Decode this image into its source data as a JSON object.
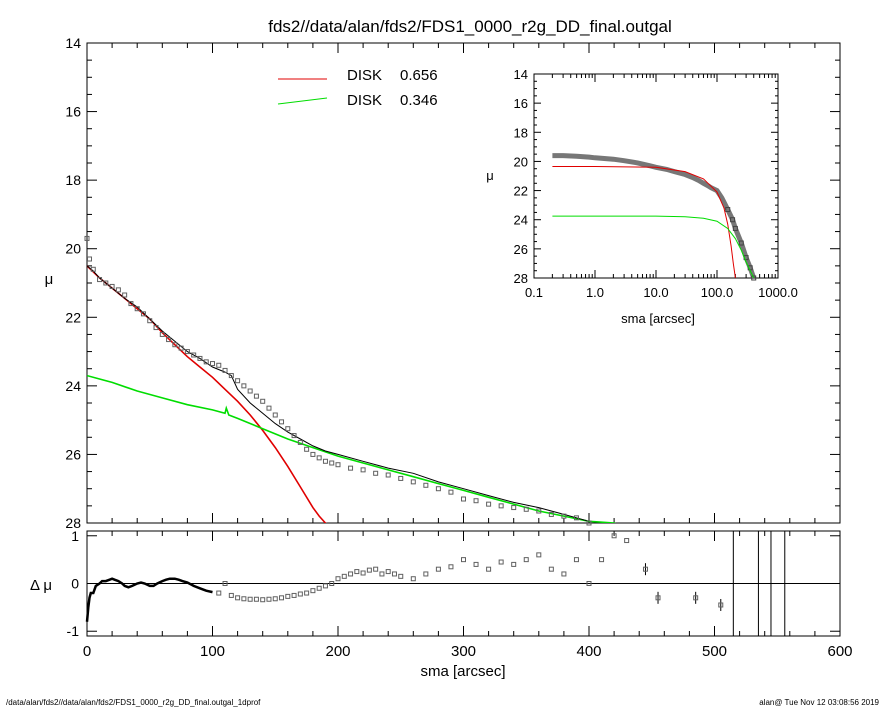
{
  "title": "fds2//data/alan/fds2/FDS1_0000_r2g_DD_final.outgal",
  "footer": {
    "left": "/data/alan/fds2//data/alan/fds2/FDS1_0000_r2g_DD_final.outgal_1dprof",
    "right": "alan@  Tue Nov 12 03:08:56 2019"
  },
  "colors": {
    "disk1": "#e00000",
    "disk2": "#00dd00",
    "data": "#606060",
    "model": "#000000"
  },
  "chart_data": [
    {
      "id": "main",
      "type": "line",
      "ylabel": "μ",
      "xlim": [
        0,
        600
      ],
      "ylim": [
        14,
        28
      ],
      "y_inverted": true,
      "yticks": [
        14,
        16,
        18,
        20,
        22,
        24,
        26,
        28
      ],
      "legend": [
        {
          "name": "DISK",
          "value": "0.656",
          "color": "#e00000"
        },
        {
          "name": "DISK",
          "value": "0.346",
          "color": "#00dd00"
        }
      ],
      "series": [
        {
          "name": "data",
          "x": [
            0,
            2,
            5,
            10,
            15,
            20,
            25,
            30,
            35,
            40,
            45,
            50,
            55,
            60,
            65,
            70,
            75,
            80,
            85,
            90,
            95,
            100,
            105,
            110,
            115,
            120,
            125,
            130,
            135,
            140,
            145,
            150,
            155,
            160,
            165,
            170,
            175,
            180,
            185,
            190,
            195,
            200,
            210,
            220,
            230,
            240,
            250,
            260,
            270,
            280,
            290,
            300,
            310,
            320,
            330,
            340,
            350,
            360,
            370,
            380,
            390,
            400
          ],
          "y": [
            19.7,
            20.3,
            20.6,
            20.9,
            21.0,
            21.1,
            21.2,
            21.35,
            21.6,
            21.75,
            21.9,
            22.1,
            22.3,
            22.5,
            22.65,
            22.8,
            22.9,
            23.0,
            23.1,
            23.2,
            23.3,
            23.35,
            23.4,
            23.55,
            23.7,
            23.85,
            24.0,
            24.15,
            24.3,
            24.45,
            24.65,
            24.85,
            25.05,
            25.25,
            25.45,
            25.65,
            25.85,
            26.0,
            26.1,
            26.2,
            26.25,
            26.3,
            26.4,
            26.45,
            26.55,
            26.6,
            26.7,
            26.8,
            26.9,
            27.0,
            27.1,
            27.3,
            27.35,
            27.45,
            27.5,
            27.55,
            27.6,
            27.65,
            27.75,
            27.8,
            27.85,
            28.0
          ]
        },
        {
          "name": "model",
          "x": [
            0,
            5,
            10,
            20,
            30,
            40,
            50,
            60,
            70,
            80,
            90,
            100,
            110,
            115,
            120,
            130,
            140,
            150,
            160,
            170,
            180,
            190,
            200,
            220,
            240,
            260,
            280,
            300,
            320,
            340,
            360,
            380,
            400
          ],
          "y": [
            20.5,
            20.65,
            20.85,
            21.15,
            21.45,
            21.7,
            22.05,
            22.4,
            22.7,
            23.0,
            23.2,
            23.45,
            23.6,
            23.7,
            24.1,
            24.5,
            24.8,
            25.1,
            25.35,
            25.55,
            25.75,
            25.9,
            26.0,
            26.2,
            26.4,
            26.55,
            26.8,
            27.0,
            27.2,
            27.4,
            27.55,
            27.75,
            27.95
          ]
        },
        {
          "name": "DISK 0.656",
          "x": [
            0,
            10,
            20,
            30,
            40,
            50,
            60,
            70,
            80,
            90,
            100,
            110,
            120,
            130,
            140,
            150,
            160,
            170,
            180,
            185,
            190,
            193
          ],
          "y": [
            20.5,
            20.85,
            21.15,
            21.45,
            21.75,
            22.05,
            22.45,
            22.8,
            23.15,
            23.45,
            23.75,
            24.1,
            24.45,
            24.85,
            25.3,
            25.8,
            26.35,
            26.95,
            27.55,
            27.8,
            28.0,
            28.1
          ]
        },
        {
          "name": "DISK 0.346",
          "x": [
            0,
            20,
            40,
            60,
            80,
            100,
            110,
            111,
            113,
            120,
            140,
            160,
            180,
            200,
            220,
            240,
            260,
            280,
            300,
            320,
            340,
            360,
            380,
            400,
            420,
            425
          ],
          "y": [
            23.7,
            23.9,
            24.15,
            24.35,
            24.55,
            24.7,
            24.8,
            24.65,
            24.85,
            24.95,
            25.25,
            25.55,
            25.8,
            26.05,
            26.25,
            26.45,
            26.65,
            26.85,
            27.05,
            27.25,
            27.45,
            27.65,
            27.8,
            27.95,
            28.0,
            28.1
          ]
        }
      ]
    },
    {
      "id": "inset",
      "type": "line",
      "xlabel": "sma [arcsec]",
      "ylabel": "μ",
      "xscale": "log",
      "xlim": [
        0.1,
        1000
      ],
      "xtick_labels": [
        "0.1",
        "1.0",
        "10.0",
        "100.0",
        "1000.0"
      ],
      "ylim": [
        14,
        28
      ],
      "y_inverted": true,
      "yticks": [
        14,
        16,
        18,
        20,
        22,
        24,
        26,
        28
      ],
      "series": [
        {
          "name": "data",
          "x": [
            0.2,
            0.3,
            0.5,
            0.8,
            1.0,
            2,
            3,
            5,
            8,
            10,
            15,
            20,
            30,
            40,
            50,
            60,
            70,
            80,
            100,
            120,
            150,
            180,
            200,
            250,
            300,
            350,
            400
          ],
          "y": [
            19.6,
            19.6,
            19.65,
            19.7,
            19.75,
            19.85,
            19.95,
            20.1,
            20.3,
            20.4,
            20.55,
            20.7,
            20.9,
            21.1,
            21.3,
            21.5,
            21.65,
            21.8,
            22.0,
            22.5,
            23.3,
            24.0,
            24.6,
            25.6,
            26.6,
            27.3,
            28.0
          ]
        },
        {
          "name": "DISK 0.656",
          "x": [
            0.2,
            1,
            10,
            30,
            60,
            100,
            130,
            150,
            170,
            185,
            200
          ],
          "y": [
            20.35,
            20.35,
            20.4,
            20.7,
            21.2,
            22.1,
            23.2,
            24.3,
            25.8,
            27.0,
            28.0
          ]
        },
        {
          "name": "DISK 0.346",
          "x": [
            0.2,
            1,
            10,
            30,
            60,
            100,
            150,
            200,
            250,
            300,
            350,
            400
          ],
          "y": [
            23.75,
            23.75,
            23.75,
            23.8,
            23.9,
            24.1,
            24.6,
            25.3,
            26.1,
            26.9,
            27.5,
            28.0
          ]
        }
      ]
    },
    {
      "id": "residual",
      "type": "scatter",
      "xlabel": "sma [arcsec]",
      "ylabel": "Δ μ",
      "xlim": [
        0,
        600
      ],
      "xticks": [
        0,
        100,
        200,
        300,
        400,
        500,
        600
      ],
      "ylim": [
        -1.1,
        1.1
      ],
      "yticks": [
        -1,
        0,
        1
      ],
      "vertical_lines_x": [
        515,
        535,
        545,
        556
      ],
      "series": [
        {
          "name": "residual",
          "x": [
            0,
            1,
            2,
            3,
            5,
            7,
            10,
            12,
            15,
            18,
            20,
            22,
            25,
            28,
            30,
            33,
            36,
            40,
            43,
            46,
            50,
            53,
            56,
            60,
            63,
            66,
            70,
            73,
            76,
            80,
            85,
            90,
            95,
            100,
            105,
            110,
            115,
            120,
            125,
            130,
            135,
            140,
            145,
            150,
            155,
            160,
            165,
            170,
            175,
            180,
            185,
            190,
            195,
            200,
            205,
            210,
            215,
            220,
            225,
            230,
            235,
            240,
            245,
            250,
            260,
            270,
            280,
            290,
            300,
            310,
            320,
            330,
            340,
            350,
            360,
            370,
            380,
            390,
            400,
            410,
            420,
            430,
            445,
            455,
            485,
            505
          ],
          "y": [
            -0.8,
            -0.5,
            -0.3,
            -0.2,
            -0.2,
            -0.05,
            0.0,
            0.05,
            0.05,
            0.08,
            0.1,
            0.08,
            0.05,
            0.0,
            -0.05,
            -0.08,
            -0.05,
            0.0,
            0.02,
            0.0,
            -0.05,
            -0.05,
            0.0,
            0.05,
            0.08,
            0.1,
            0.1,
            0.08,
            0.05,
            0.02,
            -0.05,
            -0.1,
            -0.15,
            -0.18,
            -0.2,
            0.0,
            -0.25,
            -0.3,
            -0.32,
            -0.33,
            -0.33,
            -0.34,
            -0.33,
            -0.32,
            -0.3,
            -0.27,
            -0.25,
            -0.22,
            -0.2,
            -0.15,
            -0.1,
            -0.05,
            0.0,
            0.1,
            0.15,
            0.2,
            0.25,
            0.22,
            0.28,
            0.3,
            0.2,
            0.25,
            0.2,
            0.15,
            0.1,
            0.2,
            0.3,
            0.35,
            0.5,
            0.4,
            0.3,
            0.45,
            0.4,
            0.5,
            0.6,
            0.3,
            0.2,
            0.5,
            0.0,
            0.5,
            1.0,
            0.9,
            0.3,
            -0.3,
            -0.3,
            -0.45
          ]
        }
      ]
    }
  ]
}
